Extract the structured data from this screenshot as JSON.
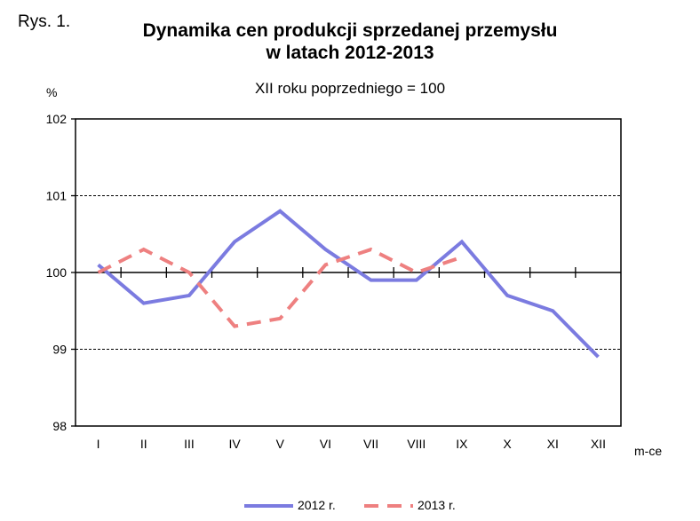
{
  "figure_label": "Rys. 1.",
  "title_line1": "Dynamika cen produkcji sprzedanej przemysłu",
  "title_line2": "w latach 2012-2013",
  "subtitle": "XII roku poprzedniego = 100",
  "y_unit": "%",
  "x_axis_name": "m-ce",
  "colors": {
    "series_2012": "#7b7be0",
    "series_2013": "#ee8080",
    "axis": "#000000",
    "grid": "#000000"
  },
  "legend": [
    {
      "label": "2012 r.",
      "style": "solid"
    },
    {
      "label": "2013 r.",
      "style": "dashed"
    }
  ],
  "chart_data": {
    "type": "line",
    "title": "Dynamika cen produkcji sprzedanej przemysłu w latach 2012-2013",
    "subtitle": "XII roku poprzedniego = 100",
    "xlabel": "m-ce",
    "ylabel": "%",
    "categories": [
      "I",
      "II",
      "III",
      "IV",
      "V",
      "VI",
      "VII",
      "VIII",
      "IX",
      "X",
      "XI",
      "XII"
    ],
    "series": [
      {
        "name": "2012 r.",
        "values": [
          100.1,
          99.6,
          99.7,
          100.4,
          100.8,
          100.3,
          99.9,
          99.9,
          100.4,
          99.7,
          99.5,
          98.9
        ]
      },
      {
        "name": "2013 r.",
        "values": [
          100.0,
          100.3,
          100.0,
          99.3,
          99.4,
          100.1,
          100.3,
          100.0,
          100.2,
          null,
          null,
          null
        ]
      }
    ],
    "ylim": [
      98,
      102
    ],
    "yticks": [
      98,
      99,
      100,
      101,
      102
    ],
    "grid": "dashed horizontal at 99 and 101; solid reference line at 100",
    "legend_position": "bottom"
  }
}
